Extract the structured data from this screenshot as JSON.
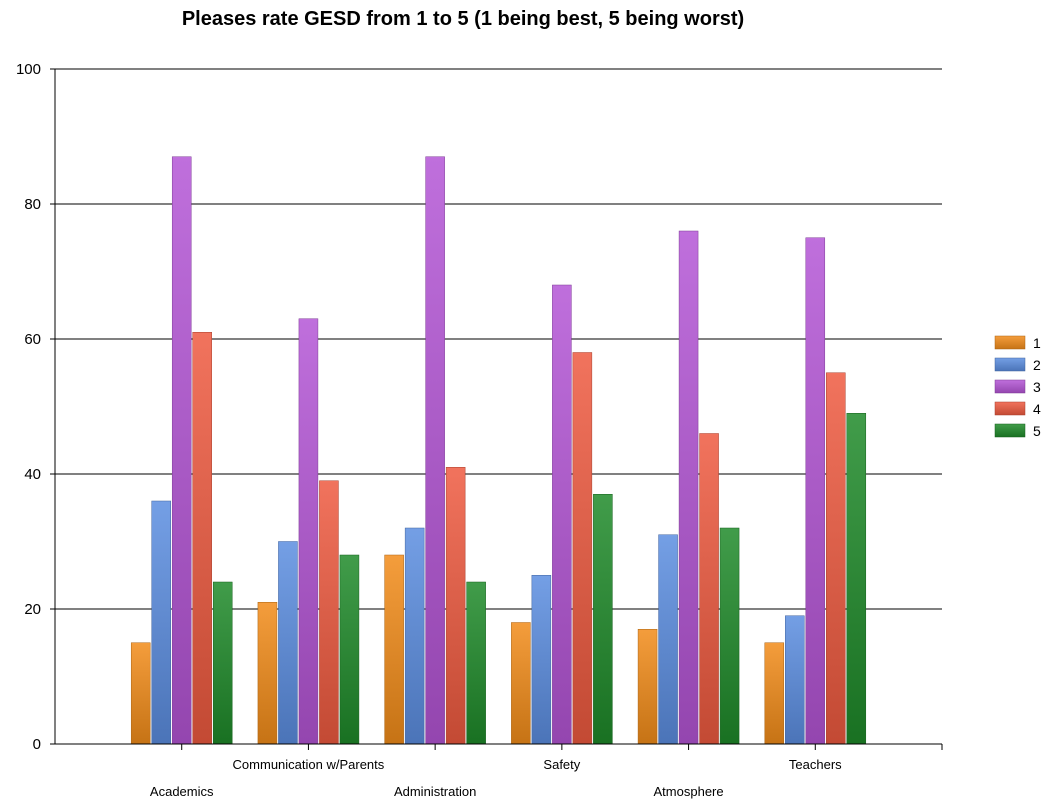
{
  "chart_data": {
    "type": "bar",
    "title": "Pleases rate GESD from 1 to 5 (1 being best, 5 being worst)",
    "xlabel": "",
    "ylabel": "",
    "ylim": [
      0,
      100
    ],
    "yticks": [
      "0",
      "20",
      "40",
      "60",
      "80",
      "100"
    ],
    "grid": true,
    "legend_position": "right",
    "categories": [
      "Academics",
      "Communication w/Parents",
      "Administration",
      "Safety",
      "Atmosphere",
      "Teachers"
    ],
    "series": [
      {
        "name": "1",
        "color": "#f28c1a",
        "values": [
          15,
          21,
          28,
          18,
          17,
          15
        ]
      },
      {
        "name": "2",
        "color": "#5b8ee0",
        "values": [
          36,
          30,
          32,
          25,
          31,
          19
        ]
      },
      {
        "name": "3",
        "color": "#b455d6",
        "values": [
          87,
          63,
          87,
          68,
          76,
          75
        ]
      },
      {
        "name": "4",
        "color": "#ee5a40",
        "values": [
          61,
          39,
          41,
          58,
          46,
          55
        ]
      },
      {
        "name": "5",
        "color": "#1f8a2a",
        "values": [
          24,
          28,
          24,
          37,
          32,
          49
        ]
      }
    ]
  }
}
